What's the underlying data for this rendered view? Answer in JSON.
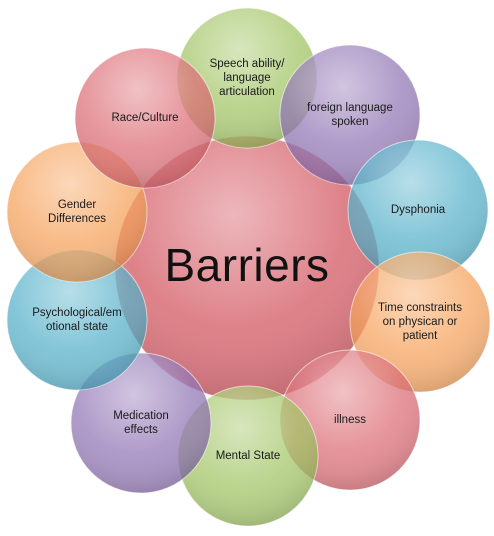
{
  "center": {
    "title": "Barriers",
    "color": "#d86a73"
  },
  "nodes": [
    {
      "key": "speech",
      "label": "Speech ability/\nlanguage\narticulation",
      "color": "#9bc05a"
    },
    {
      "key": "foreign",
      "label": "foreign language\nspoken",
      "color": "#8a6db0"
    },
    {
      "key": "dysphonia",
      "label": "Dysphonia",
      "color": "#4bacc6"
    },
    {
      "key": "time",
      "label": "Time constraints\non physican or\npatient",
      "color": "#f59d52"
    },
    {
      "key": "illness",
      "label": "illness",
      "color": "#d9646c"
    },
    {
      "key": "mental",
      "label": "Mental State",
      "color": "#9bc05a"
    },
    {
      "key": "medication",
      "label": "Medication\neffects",
      "color": "#8a6db0"
    },
    {
      "key": "psych",
      "label": "Psychological/em\notional state",
      "color": "#4bacc6"
    },
    {
      "key": "gender",
      "label": "Gender\nDifferences",
      "color": "#f59d52"
    },
    {
      "key": "race",
      "label": "Race/Culture",
      "color": "#d9646c"
    }
  ]
}
